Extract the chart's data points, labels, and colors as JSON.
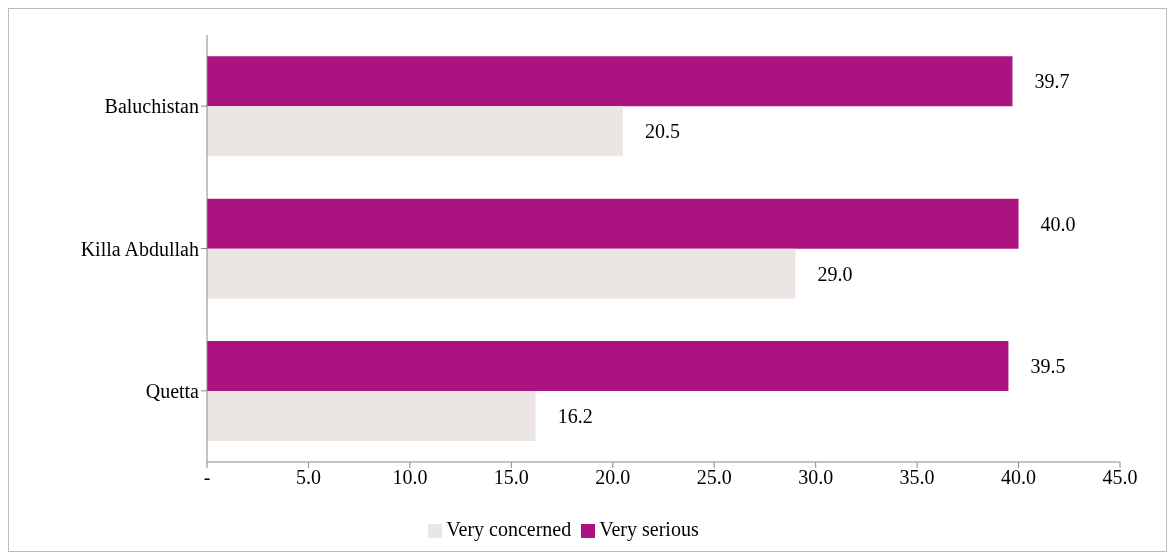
{
  "chart_data": {
    "type": "bar",
    "orientation": "horizontal",
    "categories": [
      "Baluchistan",
      "Killa Abdullah",
      "Quetta"
    ],
    "series": [
      {
        "name": "Very serious",
        "color": "#ab1480",
        "values": [
          39.7,
          40.0,
          39.5
        ],
        "value_labels": [
          "39.7",
          "40.0",
          "39.5"
        ]
      },
      {
        "name": "Very concerned",
        "color": "#ebe6e3",
        "values": [
          20.5,
          29.0,
          16.2
        ],
        "value_labels": [
          "20.5",
          "29.0",
          "16.2"
        ]
      }
    ],
    "xlim": [
      0,
      45
    ],
    "xticks": [
      {
        "value": 0,
        "label": "-"
      },
      {
        "value": 5,
        "label": "5.0"
      },
      {
        "value": 10,
        "label": "10.0"
      },
      {
        "value": 15,
        "label": "15.0"
      },
      {
        "value": 20,
        "label": "20.0"
      },
      {
        "value": 25,
        "label": "25.0"
      },
      {
        "value": 30,
        "label": "30.0"
      },
      {
        "value": 35,
        "label": "35.0"
      },
      {
        "value": 40,
        "label": "40.0"
      },
      {
        "value": 45,
        "label": "45.0"
      }
    ],
    "grid": false,
    "legend": "bottom"
  }
}
